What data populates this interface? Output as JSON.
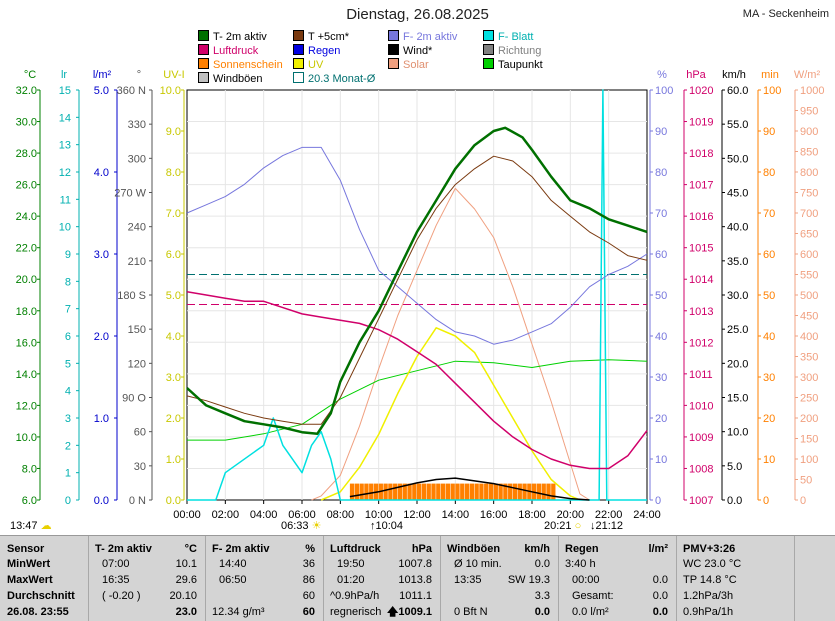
{
  "title": "Dienstag, 26.08.2025",
  "station": "MA - Seckenheim",
  "legend": [
    {
      "label": "T- 2m aktiv",
      "color": "#007000"
    },
    {
      "label": "T +5cm*",
      "color": "#7a3a10"
    },
    {
      "label": "F- 2m aktiv",
      "color": "#7777dd"
    },
    {
      "label": "F- Blatt",
      "color": "#00e0e0"
    },
    {
      "label": "Luftdruck",
      "color": "#d0006a"
    },
    {
      "label": "Regen",
      "color": "#0000e0"
    },
    {
      "label": "Wind*",
      "color": "#000000"
    },
    {
      "label": "Richtung",
      "color": "#808080"
    },
    {
      "label": "Sonnenschein",
      "color": "#ff8000"
    },
    {
      "label": "UV",
      "color": "#f0f000"
    },
    {
      "label": "Solar",
      "color": "#f0a080"
    },
    {
      "label": "Taupunkt",
      "color": "#00d000"
    },
    {
      "label": "Windböen",
      "color": "#c0c0c0"
    },
    {
      "label": "20.3 Monat-Ø",
      "color": "#007070"
    }
  ],
  "axes": {
    "left": [
      {
        "id": "temp",
        "unit": "°C",
        "color": "#008000",
        "ticks": [
          "32.0",
          "30.0",
          "28.0",
          "26.0",
          "24.0",
          "22.0",
          "20.0",
          "18.0",
          "16.0",
          "14.0",
          "12.0",
          "10.0",
          "8.0",
          "6.0"
        ]
      },
      {
        "id": "leaf",
        "unit": "lr",
        "color": "#00b0b0",
        "ticks": [
          "15",
          "14",
          "13",
          "12",
          "11",
          "10",
          "9",
          "8",
          "7",
          "6",
          "5",
          "4",
          "3",
          "2",
          "1",
          "0"
        ]
      },
      {
        "id": "rain",
        "unit": "l/m²",
        "color": "#0000cc",
        "ticks": [
          "5.0",
          "4.0",
          "3.0",
          "2.0",
          "1.0",
          "0.0"
        ]
      },
      {
        "id": "dir",
        "unit": "°",
        "color": "#555555",
        "ticks": [
          "360 N",
          "330",
          "300",
          "270 W",
          "240",
          "210",
          "180 S",
          "150",
          "120",
          "90 O",
          "60",
          "30",
          "0 N"
        ]
      },
      {
        "id": "uv",
        "unit": "UV-I",
        "color": "#c8c800",
        "ticks": [
          "10.0",
          "9.0",
          "8.0",
          "7.0",
          "6.0",
          "5.0",
          "4.0",
          "3.0",
          "2.0",
          "1.0",
          "0.0"
        ]
      }
    ],
    "right": [
      {
        "id": "hum",
        "unit": "%",
        "color": "#7777dd",
        "ticks": [
          "100",
          "90",
          "80",
          "70",
          "60",
          "50",
          "40",
          "30",
          "20",
          "10",
          "0"
        ]
      },
      {
        "id": "press",
        "unit": "hPa",
        "color": "#d0006a",
        "ticks": [
          "1020",
          "1019",
          "1018",
          "1017",
          "1016",
          "1015",
          "1014",
          "1013",
          "1012",
          "1011",
          "1010",
          "1009",
          "1008",
          "1007"
        ]
      },
      {
        "id": "wind",
        "unit": "km/h",
        "color": "#000000",
        "ticks": [
          "60.0",
          "55.0",
          "50.0",
          "45.0",
          "40.0",
          "35.0",
          "30.0",
          "25.0",
          "20.0",
          "15.0",
          "10.0",
          "5.0",
          "0.0"
        ]
      },
      {
        "id": "sunmin",
        "unit": "min",
        "color": "#ff8000",
        "ticks": [
          "100",
          "90",
          "80",
          "70",
          "60",
          "50",
          "40",
          "30",
          "20",
          "10",
          "0"
        ]
      },
      {
        "id": "solar",
        "unit": "W/m²",
        "color": "#f0a080",
        "ticks": [
          "1000",
          "950",
          "900",
          "850",
          "800",
          "750",
          "700",
          "650",
          "600",
          "550",
          "500",
          "450",
          "400",
          "350",
          "300",
          "250",
          "200",
          "150",
          "100",
          "50",
          "0"
        ]
      }
    ],
    "x_ticks": [
      "00:00",
      "02:00",
      "04:00",
      "06:00",
      "08:00",
      "10:00",
      "12:00",
      "14:00",
      "16:00",
      "18:00",
      "20:00",
      "22:00",
      "24:00"
    ]
  },
  "footer_markers": {
    "moonrise": "13:47",
    "sunrise": "06:33",
    "moon_up": "10:04",
    "sunset": "20:21",
    "moon_set": "21:12"
  },
  "chart_data": {
    "type": "line",
    "x_unit": "hours",
    "series": [
      {
        "name": "T- 2m aktiv",
        "axis": "temp",
        "points": [
          [
            0,
            13.1
          ],
          [
            1,
            12.0
          ],
          [
            2,
            11.5
          ],
          [
            3,
            11.0
          ],
          [
            4,
            10.8
          ],
          [
            5,
            10.6
          ],
          [
            6,
            10.3
          ],
          [
            6.8,
            10.2
          ],
          [
            7.5,
            11.5
          ],
          [
            8,
            13.5
          ],
          [
            9,
            16.0
          ],
          [
            10,
            18.0
          ],
          [
            11,
            20.5
          ],
          [
            12,
            23.0
          ],
          [
            13,
            25.0
          ],
          [
            14,
            27.0
          ],
          [
            15,
            28.5
          ],
          [
            16,
            29.4
          ],
          [
            16.6,
            29.6
          ],
          [
            17.5,
            29.0
          ],
          [
            18,
            28.2
          ],
          [
            19,
            26.5
          ],
          [
            20,
            25.0
          ],
          [
            21,
            24.5
          ],
          [
            22,
            23.8
          ],
          [
            23,
            23.4
          ],
          [
            24,
            23.0
          ]
        ]
      },
      {
        "name": "T +5cm*",
        "axis": "temp",
        "points": [
          [
            0,
            12.6
          ],
          [
            1,
            12.3
          ],
          [
            2,
            11.9
          ],
          [
            3,
            11.5
          ],
          [
            4,
            11.2
          ],
          [
            5,
            11.0
          ],
          [
            6,
            10.8
          ],
          [
            7,
            10.8
          ],
          [
            8,
            12.5
          ],
          [
            9,
            15.0
          ],
          [
            10,
            17.5
          ],
          [
            11,
            20.0
          ],
          [
            12,
            22.5
          ],
          [
            13,
            24.5
          ],
          [
            14,
            26.0
          ],
          [
            15,
            27.0
          ],
          [
            16,
            27.8
          ],
          [
            17,
            27.5
          ],
          [
            18,
            26.5
          ],
          [
            19,
            25.0
          ],
          [
            20,
            24.0
          ],
          [
            21,
            23.0
          ],
          [
            22,
            22.3
          ],
          [
            23,
            21.5
          ],
          [
            24,
            21.2
          ]
        ]
      },
      {
        "name": "F- 2m aktiv",
        "axis": "hum",
        "points": [
          [
            0,
            70
          ],
          [
            1,
            72
          ],
          [
            2,
            74
          ],
          [
            3,
            77
          ],
          [
            4,
            81
          ],
          [
            5,
            84
          ],
          [
            6,
            86
          ],
          [
            7,
            86
          ],
          [
            8,
            78
          ],
          [
            9,
            66
          ],
          [
            10,
            56
          ],
          [
            11,
            52
          ],
          [
            12,
            48
          ],
          [
            13,
            44
          ],
          [
            14,
            41
          ],
          [
            15,
            40
          ],
          [
            16,
            38
          ],
          [
            17,
            39
          ],
          [
            18,
            41
          ],
          [
            19,
            43
          ],
          [
            20,
            47
          ],
          [
            21,
            52
          ],
          [
            22,
            55
          ],
          [
            23,
            57
          ],
          [
            24,
            60
          ]
        ]
      },
      {
        "name": "Luftdruck",
        "axis": "press",
        "points": [
          [
            0,
            1013.6
          ],
          [
            1,
            1013.5
          ],
          [
            2,
            1013.4
          ],
          [
            3,
            1013.3
          ],
          [
            4,
            1013.3
          ],
          [
            5,
            1013.1
          ],
          [
            6,
            1012.9
          ],
          [
            7,
            1012.8
          ],
          [
            8,
            1012.7
          ],
          [
            9,
            1012.6
          ],
          [
            10,
            1012.4
          ],
          [
            11,
            1012.1
          ],
          [
            12,
            1011.7
          ],
          [
            13,
            1011.3
          ],
          [
            14,
            1010.7
          ],
          [
            15,
            1010.1
          ],
          [
            16,
            1009.5
          ],
          [
            17,
            1009.0
          ],
          [
            18,
            1008.6
          ],
          [
            19,
            1008.3
          ],
          [
            20,
            1008.1
          ],
          [
            21,
            1008.0
          ],
          [
            22,
            1008.0
          ],
          [
            23,
            1008.4
          ],
          [
            24,
            1009.2
          ]
        ]
      },
      {
        "name": "Taupunkt",
        "axis": "temp",
        "points": [
          [
            0,
            9.8
          ],
          [
            2,
            9.8
          ],
          [
            4,
            10.2
          ],
          [
            6,
            10.8
          ],
          [
            8,
            12.4
          ],
          [
            10,
            13.6
          ],
          [
            12,
            14.2
          ],
          [
            14,
            14.8
          ],
          [
            16,
            14.7
          ],
          [
            18,
            14.4
          ],
          [
            20,
            14.8
          ],
          [
            22,
            14.9
          ],
          [
            24,
            14.8
          ]
        ]
      },
      {
        "name": "Solar",
        "axis": "solar",
        "points": [
          [
            6.5,
            0
          ],
          [
            7,
            10
          ],
          [
            8,
            60
          ],
          [
            9,
            180
          ],
          [
            10,
            320
          ],
          [
            11,
            450
          ],
          [
            12,
            560
          ],
          [
            13,
            670
          ],
          [
            14,
            760
          ],
          [
            15,
            710
          ],
          [
            16,
            640
          ],
          [
            17,
            520
          ],
          [
            18,
            380
          ],
          [
            19,
            240
          ],
          [
            20,
            90
          ],
          [
            20.5,
            15
          ],
          [
            21,
            0
          ]
        ]
      },
      {
        "name": "UV",
        "axis": "uv",
        "points": [
          [
            7,
            0
          ],
          [
            8,
            0.2
          ],
          [
            9,
            0.8
          ],
          [
            10,
            1.6
          ],
          [
            11,
            2.6
          ],
          [
            12,
            3.5
          ],
          [
            13,
            4.2
          ],
          [
            14,
            4.0
          ],
          [
            15,
            3.6
          ],
          [
            16,
            2.8
          ],
          [
            17,
            2.0
          ],
          [
            18,
            1.2
          ],
          [
            19,
            0.5
          ],
          [
            20,
            0.1
          ],
          [
            20.5,
            0
          ]
        ]
      },
      {
        "name": "Wind*",
        "axis": "wind",
        "points": [
          [
            8.5,
            0.5
          ],
          [
            10,
            1.2
          ],
          [
            12,
            2.5
          ],
          [
            13,
            3.0
          ],
          [
            14,
            3.2
          ],
          [
            15,
            2.8
          ],
          [
            16,
            2.4
          ],
          [
            17,
            1.8
          ],
          [
            18,
            1.2
          ],
          [
            19,
            0.6
          ],
          [
            20,
            0.2
          ],
          [
            21,
            0
          ]
        ]
      },
      {
        "name": "F- Blatt",
        "axis": "leaf",
        "points": [
          [
            0,
            0
          ],
          [
            1.5,
            0
          ],
          [
            2,
            1
          ],
          [
            4,
            2
          ],
          [
            4.5,
            3
          ],
          [
            5,
            2
          ],
          [
            6,
            1
          ],
          [
            6.5,
            2
          ],
          [
            7,
            2.5
          ],
          [
            7.5,
            1.5
          ],
          [
            8,
            0
          ],
          [
            21.5,
            0
          ],
          [
            21.7,
            15
          ],
          [
            21.9,
            0
          ],
          [
            24,
            0
          ]
        ]
      }
    ],
    "sunshine_bars": {
      "name": "Sonnenschein",
      "axis": "sunmin",
      "start": 8.5,
      "end": 19.2,
      "value": 4
    },
    "monthly_mean": {
      "name": "20.3 Monat-Ø",
      "axis": "temp",
      "value": 20.3
    },
    "pressure_mean": {
      "axis": "press",
      "value": 1013.2
    }
  },
  "table": {
    "rows_label": [
      "Sensor",
      "MinWert",
      "MaxWert",
      "Durchschnitt",
      "26.08. 23:55"
    ],
    "groups": [
      {
        "header": "T- 2m aktiv",
        "unit": "°C",
        "cells": [
          [
            "07:00",
            "10.1"
          ],
          [
            "16:35",
            "29.6"
          ],
          [
            "( -0.20 )",
            "20.10"
          ],
          [
            "",
            "23.0"
          ]
        ]
      },
      {
        "header": "F- 2m aktiv",
        "unit": "%",
        "cells": [
          [
            "14:40",
            "36"
          ],
          [
            "06:50",
            "86"
          ],
          [
            "",
            "60"
          ],
          [
            "12.34 g/m³",
            "60"
          ]
        ]
      },
      {
        "header": "Luftdruck",
        "unit": "hPa",
        "cells": [
          [
            "19:50",
            "1007.8"
          ],
          [
            "01:20",
            "1013.8"
          ],
          [
            "^0.9hPa/h",
            "1011.1"
          ],
          [
            "regnerisch",
            "1009.1"
          ]
        ]
      },
      {
        "header": "Windböen",
        "unit": "km/h",
        "cells": [
          [
            "Ø 10 min.",
            "0.0"
          ],
          [
            "13:35",
            "SW 19.3"
          ],
          [
            "",
            "3.3"
          ],
          [
            "0 Bft N",
            "0.0"
          ]
        ]
      },
      {
        "header": "Regen",
        "unit": "l/m²",
        "cells": [
          [
            "3:40 h",
            ""
          ],
          [
            "00:00",
            "0.0"
          ],
          [
            "Gesamt:",
            "0.0"
          ],
          [
            "0.0 l/m²",
            "0.0"
          ]
        ]
      },
      {
        "header": "PMV+3:26",
        "unit": "",
        "cells": [
          [
            "WC 23.0 °C",
            ""
          ],
          [
            "TP 14.8 °C",
            ""
          ],
          [
            "1.2hPa/3h",
            ""
          ],
          [
            "0.9hPa/1h",
            ""
          ]
        ]
      }
    ]
  }
}
